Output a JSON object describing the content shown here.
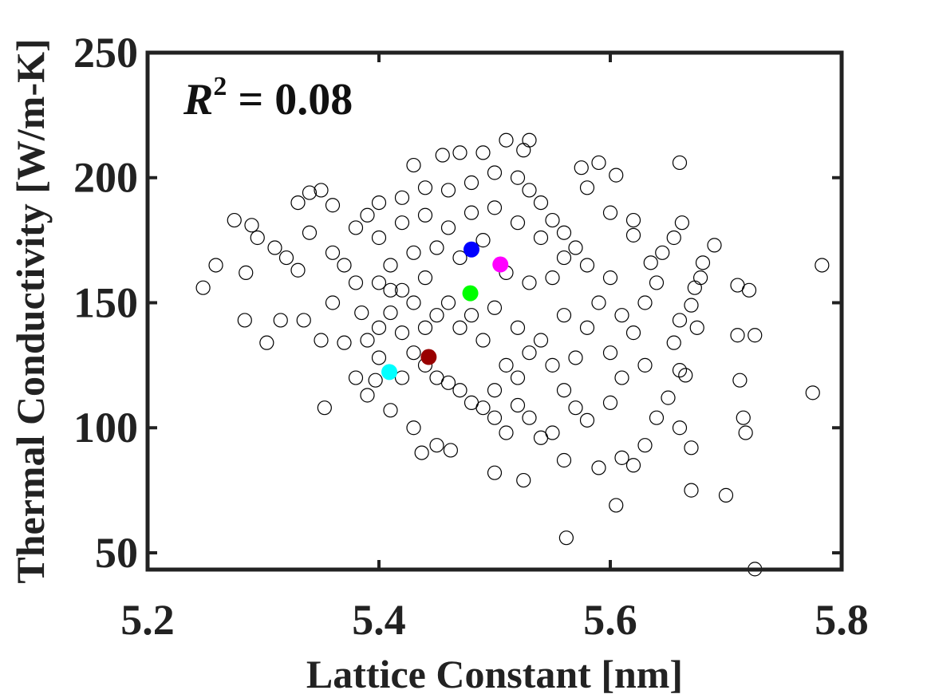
{
  "chart_data": {
    "type": "scatter",
    "xlabel": "Lattice Constant [nm]",
    "ylabel": "Thermal Conductivity [W/m-K]",
    "annotation": {
      "base": "R",
      "superscript": "2",
      "rest": "= 0.08"
    },
    "xlim": [
      5.2,
      5.8
    ],
    "xticks": [
      5.2,
      5.4,
      5.6,
      5.8
    ],
    "ylim": [
      43.3,
      250
    ],
    "yticks": [
      50,
      100,
      150,
      200,
      250
    ],
    "series": [
      {
        "color": "#000000",
        "filled": false,
        "x": [
          5.248,
          5.259,
          5.275,
          5.284,
          5.285,
          5.303,
          5.315,
          5.335,
          5.353,
          5.35,
          5.38,
          5.39,
          5.397,
          5.41,
          5.43,
          5.437,
          5.45,
          5.462,
          5.5,
          5.525,
          5.56,
          5.562,
          5.605,
          5.59,
          5.61,
          5.62,
          5.63,
          5.67,
          5.7,
          5.725,
          5.775,
          5.783,
          5.715,
          5.717,
          5.72,
          5.725,
          5.71,
          5.71,
          5.712,
          5.67,
          5.66,
          5.65,
          5.64,
          5.66,
          5.662,
          5.673,
          5.678,
          5.67,
          5.675,
          5.68,
          5.69,
          5.66,
          5.665,
          5.655,
          5.66,
          5.47,
          5.51,
          5.53,
          5.525,
          5.49,
          5.455,
          5.43,
          5.59,
          5.605,
          5.575,
          5.58,
          5.6,
          5.62,
          5.62,
          5.635,
          5.645,
          5.655,
          5.29,
          5.295,
          5.31,
          5.32,
          5.33,
          5.33,
          5.34,
          5.35,
          5.36,
          5.34,
          5.36,
          5.37,
          5.36,
          5.38,
          5.385,
          5.37,
          5.39,
          5.4,
          5.41,
          5.42,
          5.43,
          5.44,
          5.45,
          5.46,
          5.47,
          5.48,
          5.49,
          5.5,
          5.51,
          5.52,
          5.53,
          5.54,
          5.55,
          5.57,
          5.58,
          5.6,
          5.61,
          5.63,
          5.62,
          5.61,
          5.63,
          5.64,
          5.6,
          5.58,
          5.57,
          5.56,
          5.55,
          5.54,
          5.53,
          5.52,
          5.5,
          5.48,
          5.46,
          5.44,
          5.42,
          5.4,
          5.39,
          5.38,
          5.4,
          5.42,
          5.44,
          5.46,
          5.48,
          5.5,
          5.52,
          5.54,
          5.56,
          5.55,
          5.53,
          5.51,
          5.49,
          5.47,
          5.45,
          5.43,
          5.41,
          5.4,
          5.42,
          5.44,
          5.46,
          5.48,
          5.5,
          5.52,
          5.54,
          5.56,
          5.58,
          5.57,
          5.55,
          5.53,
          5.51,
          5.49,
          5.47,
          5.45,
          5.43,
          5.41,
          5.59,
          5.6,
          5.52,
          5.5,
          5.56,
          5.44,
          5.42,
          5.4
        ],
        "y": [
          156,
          165,
          183,
          143,
          162,
          134,
          143,
          143,
          108,
          135,
          120,
          113,
          119,
          107,
          100,
          90,
          93,
          91,
          82,
          79,
          87,
          56,
          69,
          84,
          88,
          85,
          93,
          75,
          73,
          43.5,
          114,
          165,
          104,
          98,
          155,
          137,
          157,
          137,
          119,
          92,
          100,
          112,
          104,
          206,
          182,
          156,
          160,
          149,
          140,
          166,
          173,
          123,
          121,
          134,
          143,
          210,
          215,
          215,
          211,
          210,
          209,
          205,
          206,
          201,
          204,
          196,
          186,
          183,
          177,
          166,
          170,
          176,
          181,
          176,
          172,
          168,
          163,
          190,
          194,
          195,
          189,
          178,
          170,
          165,
          150,
          158,
          146,
          134,
          135,
          140,
          146,
          138,
          130,
          140,
          120,
          118,
          115,
          110,
          108,
          104,
          98,
          109,
          104,
          96,
          98,
          108,
          103,
          110,
          120,
          125,
          138,
          145,
          150,
          158,
          160,
          165,
          172,
          178,
          183,
          190,
          195,
          200,
          202,
          198,
          195,
          196,
          192,
          190,
          185,
          180,
          176,
          182,
          185,
          180,
          186,
          188,
          182,
          176,
          168,
          160,
          158,
          162,
          175,
          168,
          172,
          170,
          165,
          158,
          155,
          160,
          150,
          145,
          148,
          140,
          135,
          145,
          140,
          128,
          125,
          130,
          125,
          135,
          140,
          145,
          150,
          155,
          150,
          130,
          120,
          115,
          115,
          125,
          120,
          128
        ]
      },
      {
        "color": "#0000ff",
        "filled": true,
        "x": [
          5.48
        ],
        "y": [
          171.3
        ]
      },
      {
        "color": "#ff00ff",
        "filled": true,
        "x": [
          5.505
        ],
        "y": [
          165.3
        ]
      },
      {
        "color": "#00ff00",
        "filled": true,
        "x": [
          5.479
        ],
        "y": [
          153.8
        ]
      },
      {
        "color": "#990000",
        "filled": true,
        "x": [
          5.443
        ],
        "y": [
          128.3
        ]
      },
      {
        "color": "#00ffff",
        "filled": true,
        "x": [
          5.409
        ],
        "y": [
          122.3
        ]
      }
    ]
  }
}
